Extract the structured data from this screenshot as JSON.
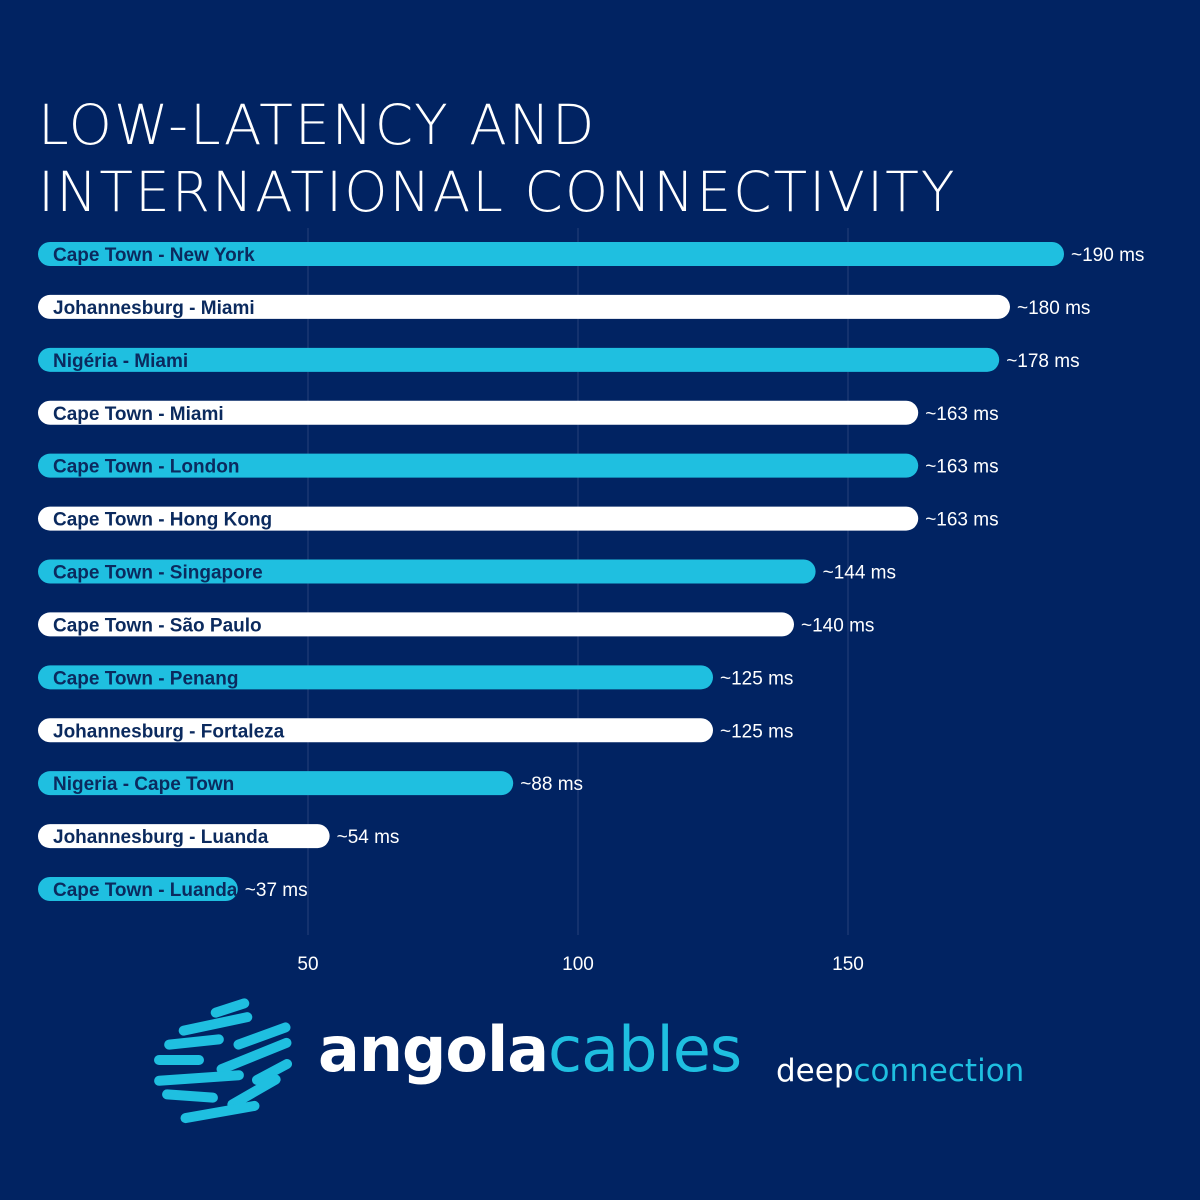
{
  "title": {
    "line1": "LOW-LATENCY AND",
    "line2": "INTERNATIONAL CONNECTIVITY"
  },
  "colors": {
    "background": "#012362",
    "accent": "#1fbfe0",
    "bar_alt": "#ffffff",
    "label_dark": "#0b2a5e"
  },
  "chart_data": {
    "type": "bar",
    "orientation": "horizontal",
    "categories": [
      "Cape Town - New York",
      "Johannesburg - Miami",
      "Nigéria - Miami",
      "Cape Town - Miami",
      "Cape Town - London",
      "Cape Town - Hong Kong",
      "Cape Town - Singapore",
      "Cape Town - São Paulo",
      "Cape Town - Penang",
      "Johannesburg - Fortaleza",
      "Nigeria - Cape Town",
      "Johannesburg - Luanda",
      "Cape Town - Luanda"
    ],
    "values": [
      190,
      180,
      178,
      163,
      163,
      163,
      144,
      140,
      125,
      125,
      88,
      54,
      37
    ],
    "value_labels": [
      "~190 ms",
      "~180 ms",
      "~178 ms",
      "~163 ms",
      "~163 ms",
      "~163 ms",
      "~144 ms",
      "~140 ms",
      "~125 ms",
      "~125 ms",
      "~88 ms",
      "~54 ms",
      "~37 ms"
    ],
    "bar_colors": [
      "#1fbfe0",
      "#ffffff",
      "#1fbfe0",
      "#ffffff",
      "#1fbfe0",
      "#ffffff",
      "#1fbfe0",
      "#ffffff",
      "#1fbfe0",
      "#ffffff",
      "#1fbfe0",
      "#ffffff",
      "#1fbfe0"
    ],
    "xticks": [
      50,
      100,
      150
    ],
    "xtick_labels": [
      "50",
      "100",
      "150"
    ],
    "xlim": [
      0,
      200
    ],
    "grid": "vertical",
    "legend": "none"
  },
  "footer": {
    "brand_part1": "angola",
    "brand_part2": "cables",
    "tagline_part1": "deep",
    "tagline_part2": "connection"
  }
}
